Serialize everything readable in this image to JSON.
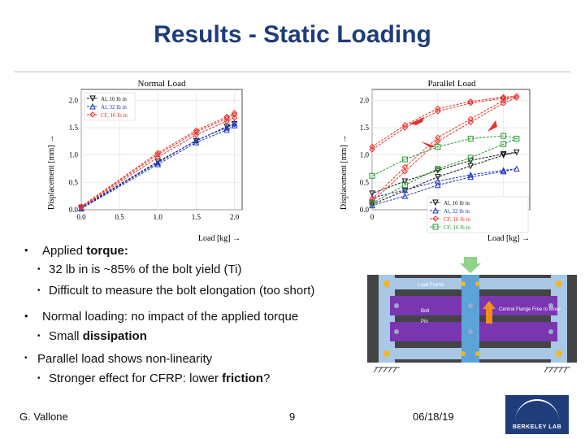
{
  "slide": {
    "title": "Results - Static Loading",
    "footer_author": "G. Vallone",
    "footer_page": "9",
    "footer_date": "06/18/19",
    "logo_text": "BERKELEY LAB"
  },
  "bullets": {
    "b1_pre": "Applied ",
    "b1_bold": "torque:",
    "b1_sub1": "32 lb in is ~85% of the bolt yield (Ti)",
    "b1_sub2": "Difficult to measure the bolt elongation (too short)",
    "b2_bold": "Normal",
    "b2_post": " loading: no impact of the applied torque",
    "b2_sub1_pre": "Small ",
    "b2_sub1_bold": "dissipation",
    "b3_bold": "Parallel",
    "b3_post": " load shows non-linearity",
    "b3_sub1_pre": "Stronger effect for CFRP: lower ",
    "b3_sub1_bold": "friction",
    "b3_sub1_post": "?"
  },
  "diagram": {
    "label_loads": "Loads",
    "label_frame": "Load Frame",
    "label_bolt": "Bolt",
    "label_pin": "Pin",
    "label_flange": "Central Flange Free to Move"
  },
  "colors": {
    "title": "#1f3d7a",
    "ti16": "#111111",
    "ti32": "#1f36c4",
    "cf16": "#e8322b",
    "cf16b": "#219e2a",
    "purple": "#7a36b0",
    "frame_blue": "#a8c8e6",
    "flange": "#5ba3d8"
  },
  "chart_data": [
    {
      "type": "line",
      "title": "Normal Load",
      "xlabel": "Load [kg] →",
      "ylabel": "Displacement [mm] →",
      "xlim": [
        0,
        2.1
      ],
      "ylim": [
        0,
        2.2
      ],
      "xticks": [
        0.0,
        0.5,
        1.0,
        1.5,
        2.0
      ],
      "xtick_labels": [
        "0.0",
        "0.5",
        "1.0",
        "1.5",
        "2.0"
      ],
      "yticks": [
        0.0,
        0.5,
        1.0,
        1.5,
        2.0
      ],
      "ytick_labels": [
        "0.0",
        "0.5",
        "1.0",
        "1.5",
        "2.0"
      ],
      "legend_position": "top-left",
      "series": [
        {
          "name": "Al, 16 lb in",
          "color": "#111111",
          "marker": "tri-down",
          "runs": [
            {
              "x": [
                0,
                1.0,
                1.5,
                1.9,
                2.0
              ],
              "y": [
                0.04,
                0.88,
                1.26,
                1.52,
                1.57
              ]
            }
          ]
        },
        {
          "name": "Al, 32 lb in",
          "color": "#1f36c4",
          "marker": "tri-up",
          "runs": [
            {
              "x": [
                0,
                1.0,
                1.5,
                1.9,
                2.0
              ],
              "y": [
                0.02,
                0.83,
                1.23,
                1.46,
                1.54
              ]
            },
            {
              "x": [
                0,
                1.0,
                1.5,
                1.9,
                2.0
              ],
              "y": [
                0.03,
                0.86,
                1.27,
                1.5,
                1.58
              ]
            }
          ]
        },
        {
          "name": "CF, 16 lb in",
          "color": "#e8322b",
          "marker": "diamond",
          "runs": [
            {
              "x": [
                0,
                1.0,
                1.5,
                1.9,
                2.0
              ],
              "y": [
                0.05,
                1.01,
                1.42,
                1.67,
                1.74
              ]
            },
            {
              "x": [
                0,
                1.0,
                1.5,
                1.9,
                2.0
              ],
              "y": [
                0.06,
                1.04,
                1.45,
                1.7,
                1.77
              ]
            },
            {
              "x": [
                0,
                1.0,
                1.5,
                1.9,
                2.0
              ],
              "y": [
                0.04,
                0.96,
                1.37,
                1.62,
                1.68
              ]
            }
          ]
        }
      ]
    },
    {
      "type": "line",
      "title": "Parallel Load",
      "xlabel": "Load [kg] →",
      "ylabel": "Displacement [mm] →",
      "xlim": [
        0,
        12
      ],
      "ylim": [
        0,
        2.2
      ],
      "xticks": [
        0,
        5,
        10
      ],
      "xtick_labels": [
        "0",
        "5",
        "10"
      ],
      "yticks": [
        0.0,
        0.5,
        1.0,
        1.5,
        2.0
      ],
      "ytick_labels": [
        "0.0",
        "0.5",
        "1.0",
        "1.5",
        "2.0"
      ],
      "legend_position": "bottom-right",
      "series": [
        {
          "name": "Al, 16 lb in",
          "color": "#111111",
          "marker": "tri-down",
          "runs": [
            {
              "x": [
                0,
                2.5,
                5,
                7.5,
                10,
                11,
                10,
                7.5,
                5,
                2.5,
                0
              ],
              "y": [
                0.1,
                0.35,
                0.6,
                0.8,
                1.0,
                1.05,
                1.02,
                0.9,
                0.72,
                0.52,
                0.3
              ]
            }
          ]
        },
        {
          "name": "Al, 32 lb in",
          "color": "#1f36c4",
          "marker": "tri-up",
          "runs": [
            {
              "x": [
                0,
                2.5,
                5,
                7.5,
                10,
                11,
                10,
                7.5,
                5,
                2.5,
                0
              ],
              "y": [
                0.08,
                0.25,
                0.45,
                0.6,
                0.7,
                0.75,
                0.72,
                0.64,
                0.52,
                0.36,
                0.22
              ]
            }
          ]
        },
        {
          "name": "CF, 16 lb in",
          "color": "#e8322b",
          "marker": "diamond",
          "runs": [
            {
              "x": [
                0,
                2.5,
                5,
                7.5,
                10,
                11,
                10,
                7.5,
                5,
                2.5,
                0
              ],
              "y": [
                0.15,
                0.7,
                1.25,
                1.6,
                1.95,
                2.05,
                2.04,
                1.95,
                1.8,
                1.5,
                1.1
              ]
            },
            {
              "x": [
                0,
                2.5,
                5,
                7.5,
                10,
                11,
                10,
                7.5,
                5,
                2.5,
                0
              ],
              "y": [
                0.2,
                0.78,
                1.32,
                1.66,
                2.0,
                2.08,
                2.06,
                1.98,
                1.85,
                1.55,
                1.15
              ]
            }
          ]
        },
        {
          "name": "CF, 16 lb in",
          "color": "#219e2a",
          "marker": "square",
          "runs": [
            {
              "x": [
                0,
                2.5,
                5,
                7.5,
                10,
                11,
                10,
                7.5,
                5,
                2.5,
                0
              ],
              "y": [
                0.12,
                0.45,
                0.75,
                0.95,
                1.2,
                1.3,
                1.35,
                1.3,
                1.15,
                0.92,
                0.62
              ]
            }
          ]
        }
      ]
    }
  ]
}
